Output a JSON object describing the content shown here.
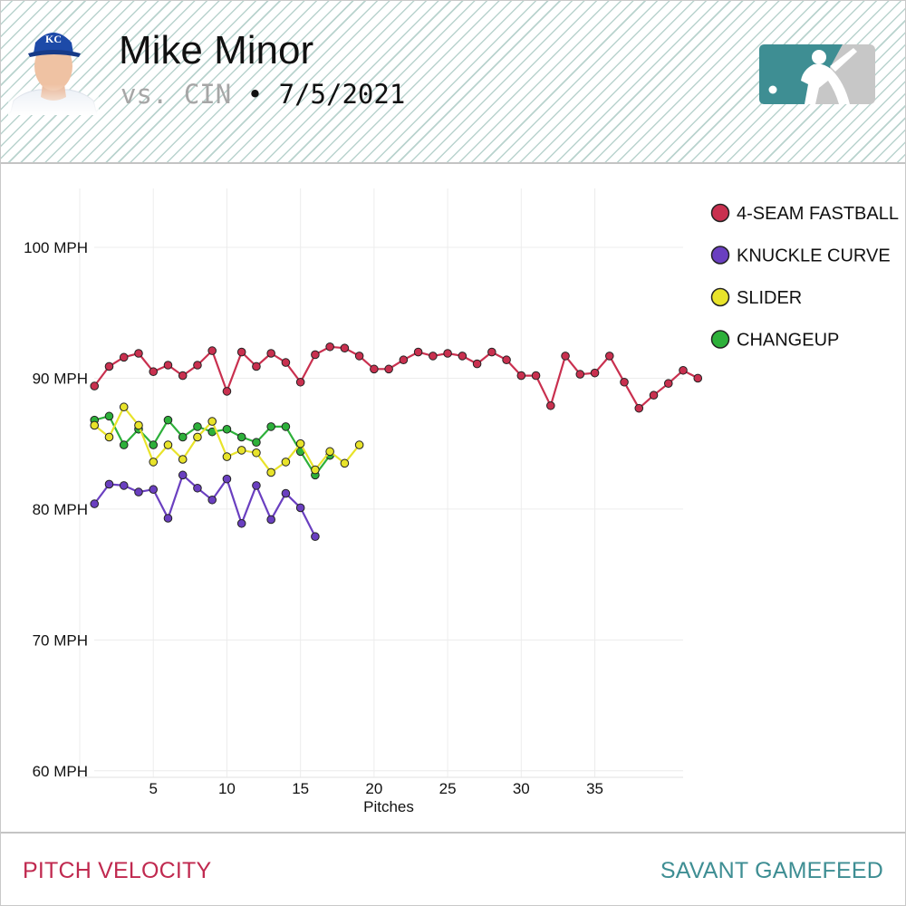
{
  "header": {
    "player_name": "Mike Minor",
    "opponent_text": "vs. CIN",
    "separator": "•",
    "date": "7/5/2021",
    "team_cap_letters": "KC"
  },
  "footer": {
    "left_label": "PITCH VELOCITY",
    "right_label": "SAVANT GAMEFEED"
  },
  "colors": {
    "fastball": "#c9304f",
    "curve": "#6a3fc0",
    "slider": "#e8e32a",
    "changeup": "#2db03a",
    "footer_left": "#c0294f",
    "footer_right": "#3e8e93",
    "logo": "#3e8e93"
  },
  "chart_data": {
    "type": "line",
    "xlabel": "Pitches",
    "ylabel": "",
    "xlim": [
      0,
      41
    ],
    "ylim": [
      59.5,
      104.5
    ],
    "x_ticks": [
      5,
      10,
      15,
      20,
      25,
      30,
      35
    ],
    "y_ticks": [
      {
        "value": 100,
        "label": "100 MPH"
      },
      {
        "value": 90,
        "label": "90 MPH"
      },
      {
        "value": 80,
        "label": "80 MPH"
      },
      {
        "value": 70,
        "label": "70 MPH"
      },
      {
        "value": 60,
        "label": "60 MPH"
      }
    ],
    "legend_position": "top-right",
    "series": [
      {
        "name": "4-SEAM FASTBALL",
        "color": "#c9304f",
        "values": [
          89.4,
          90.9,
          91.6,
          91.9,
          90.5,
          91.0,
          90.2,
          91.0,
          92.1,
          89.0,
          92.0,
          90.9,
          91.9,
          91.2,
          89.7,
          91.8,
          92.4,
          92.3,
          91.7,
          90.7,
          90.7,
          91.4,
          92.0,
          91.7,
          91.9,
          91.7,
          91.1,
          92.0,
          91.4,
          90.2,
          90.2,
          87.9,
          91.7,
          90.3,
          90.4,
          91.7,
          89.7,
          87.7,
          88.7,
          89.6,
          90.6,
          90.0
        ]
      },
      {
        "name": "KNUCKLE CURVE",
        "color": "#6a3fc0",
        "values": [
          80.4,
          81.9,
          81.8,
          81.3,
          81.5,
          79.3,
          82.6,
          81.6,
          80.7,
          82.3,
          78.9,
          81.8,
          79.2,
          81.2,
          80.1,
          77.9
        ]
      },
      {
        "name": "SLIDER",
        "color": "#e8e32a",
        "values": [
          86.4,
          85.5,
          87.8,
          86.4,
          83.6,
          84.9,
          83.8,
          85.5,
          86.7,
          84.0,
          84.5,
          84.3,
          82.8,
          83.6,
          85.0,
          83.0,
          84.4,
          83.5,
          84.9
        ]
      },
      {
        "name": "CHANGEUP",
        "color": "#2db03a",
        "values": [
          86.8,
          87.1,
          84.9,
          86.1,
          84.9,
          86.8,
          85.5,
          86.3,
          85.9,
          86.1,
          85.5,
          85.1,
          86.3,
          86.3,
          84.4,
          82.6,
          84.1
        ]
      }
    ]
  }
}
